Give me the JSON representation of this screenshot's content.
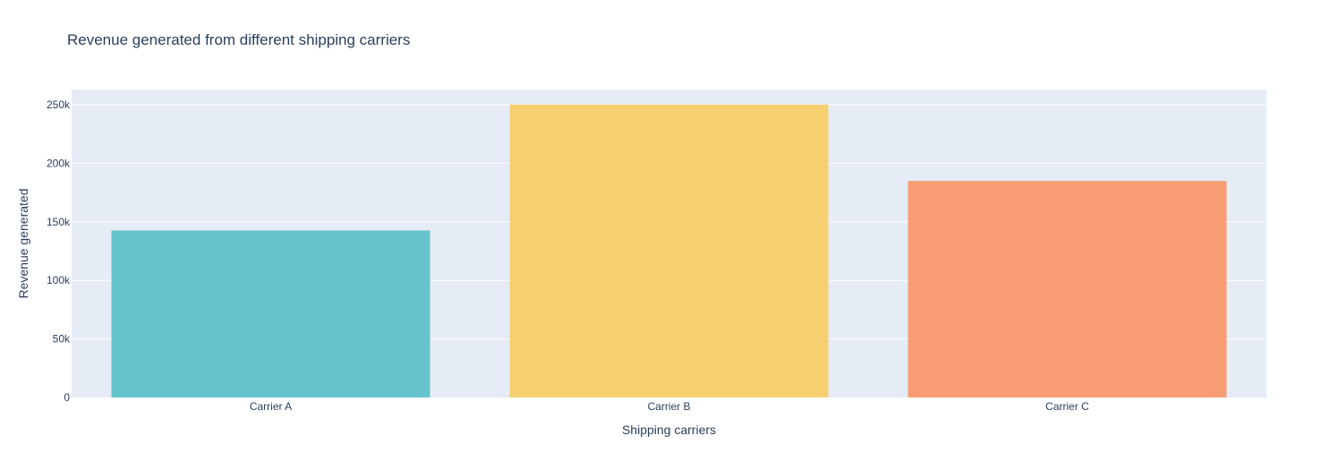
{
  "chart_data": {
    "type": "bar",
    "title": "Revenue generated from different shipping carriers",
    "xlabel": "Shipping carriers",
    "ylabel": "Revenue generated",
    "categories": [
      "Carrier A",
      "Carrier B",
      "Carrier C"
    ],
    "values": [
      142630,
      250095,
      184880
    ],
    "colors": [
      "#66c5cc",
      "#f6cf71",
      "#f89c74"
    ],
    "ylim": [
      0,
      263000
    ],
    "yticks": [
      {
        "value": 0,
        "label": "0"
      },
      {
        "value": 50000,
        "label": "50k"
      },
      {
        "value": 100000,
        "label": "100k"
      },
      {
        "value": 150000,
        "label": "150k"
      },
      {
        "value": 200000,
        "label": "200k"
      },
      {
        "value": 250000,
        "label": "250k"
      }
    ],
    "grid": true,
    "legend": "none",
    "plot_background": "#e5ecf6",
    "grid_color": "#ffffff",
    "text_color": "#2a3f5f"
  }
}
